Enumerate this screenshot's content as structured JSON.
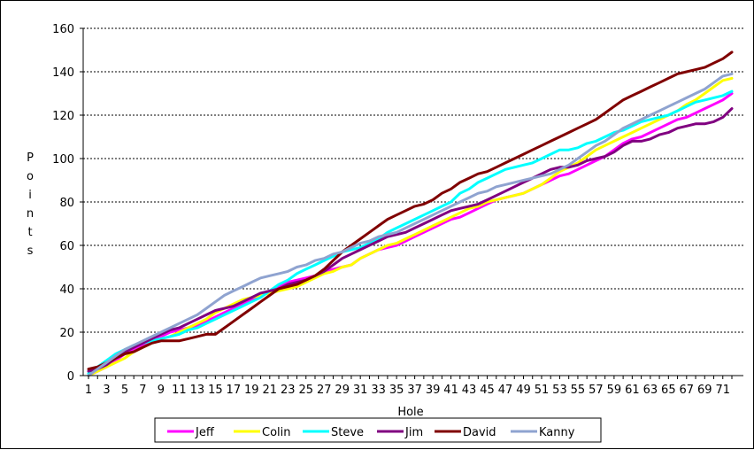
{
  "chart_data": {
    "type": "line",
    "title": "",
    "xlabel": "Hole",
    "ylabel": "Points",
    "x": [
      1,
      2,
      3,
      4,
      5,
      6,
      7,
      8,
      9,
      10,
      11,
      12,
      13,
      14,
      15,
      16,
      17,
      18,
      19,
      20,
      21,
      22,
      23,
      24,
      25,
      26,
      27,
      28,
      29,
      30,
      31,
      32,
      33,
      34,
      35,
      36,
      37,
      38,
      39,
      40,
      41,
      42,
      43,
      44,
      45,
      46,
      47,
      48,
      49,
      50,
      51,
      52,
      53,
      54,
      55,
      56,
      57,
      58,
      59,
      60,
      61,
      62,
      63,
      64,
      65,
      66,
      67,
      68,
      69,
      70,
      71,
      72
    ],
    "x_tick_labels": [
      "1",
      "3",
      "5",
      "7",
      "9",
      "11",
      "13",
      "15",
      "17",
      "19",
      "21",
      "23",
      "25",
      "27",
      "29",
      "31",
      "33",
      "35",
      "37",
      "39",
      "41",
      "43",
      "45",
      "47",
      "49",
      "51",
      "53",
      "55",
      "57",
      "59",
      "61",
      "63",
      "65",
      "67",
      "69",
      "71"
    ],
    "ylim": [
      0,
      160
    ],
    "y_ticks": [
      0,
      20,
      40,
      60,
      80,
      100,
      120,
      140,
      160
    ],
    "grid": "horizontal-dashed",
    "legend_position": "bottom",
    "series": [
      {
        "name": "Jeff",
        "color": "#FF00FF",
        "values": [
          0,
          2,
          4,
          7,
          10,
          12,
          14,
          16,
          18,
          20,
          21,
          22,
          23,
          25,
          27,
          29,
          31,
          33,
          35,
          37,
          39,
          41,
          43,
          44,
          45,
          46,
          48,
          49,
          50,
          51,
          54,
          56,
          58,
          59,
          60,
          62,
          64,
          66,
          68,
          70,
          72,
          73,
          75,
          77,
          79,
          81,
          82,
          83,
          84,
          86,
          88,
          90,
          92,
          93,
          95,
          97,
          99,
          101,
          104,
          107,
          109,
          110,
          112,
          114,
          116,
          118,
          119,
          121,
          123,
          125,
          127,
          130
        ]
      },
      {
        "name": "Colin",
        "color": "#FFFF00",
        "values": [
          0,
          2,
          4,
          6,
          8,
          11,
          13,
          15,
          17,
          18,
          20,
          22,
          24,
          26,
          29,
          31,
          33,
          35,
          36,
          37,
          38,
          39,
          40,
          41,
          43,
          45,
          47,
          48,
          50,
          51,
          54,
          56,
          58,
          60,
          61,
          63,
          65,
          67,
          69,
          71,
          73,
          75,
          77,
          78,
          80,
          81,
          82,
          83,
          84,
          86,
          88,
          91,
          94,
          96,
          98,
          101,
          104,
          106,
          108,
          110,
          112,
          114,
          116,
          118,
          120,
          122,
          125,
          127,
          130,
          133,
          136,
          137
        ]
      },
      {
        "name": "Steve",
        "color": "#00FFFF",
        "values": [
          1,
          4,
          7,
          10,
          12,
          14,
          15,
          16,
          17,
          18,
          19,
          21,
          22,
          24,
          26,
          28,
          30,
          32,
          34,
          36,
          39,
          42,
          44,
          47,
          49,
          51,
          53,
          55,
          57,
          58,
          59,
          61,
          63,
          66,
          68,
          70,
          72,
          74,
          76,
          78,
          80,
          84,
          86,
          89,
          91,
          93,
          95,
          96,
          97,
          98,
          100,
          102,
          104,
          104,
          105,
          107,
          108,
          110,
          112,
          113,
          115,
          117,
          118,
          119,
          120,
          122,
          124,
          126,
          127,
          128,
          129,
          131
        ]
      },
      {
        "name": "Jim",
        "color": "#800080",
        "values": [
          2,
          3,
          5,
          8,
          11,
          13,
          15,
          17,
          19,
          21,
          22,
          24,
          26,
          28,
          30,
          31,
          32,
          34,
          36,
          38,
          39,
          40,
          42,
          43,
          44,
          46,
          48,
          51,
          54,
          56,
          58,
          60,
          62,
          64,
          65,
          66,
          68,
          70,
          72,
          74,
          76,
          77,
          78,
          79,
          81,
          83,
          85,
          87,
          89,
          91,
          93,
          95,
          96,
          96,
          97,
          99,
          100,
          101,
          103,
          106,
          108,
          108,
          109,
          111,
          112,
          114,
          115,
          116,
          116,
          117,
          119,
          123
        ]
      },
      {
        "name": "David",
        "color": "#800000",
        "values": [
          3,
          4,
          6,
          8,
          10,
          11,
          13,
          15,
          16,
          16,
          16,
          17,
          18,
          19,
          19,
          22,
          25,
          28,
          31,
          34,
          37,
          40,
          41,
          42,
          44,
          46,
          49,
          53,
          57,
          60,
          63,
          66,
          69,
          72,
          74,
          76,
          78,
          79,
          81,
          84,
          86,
          89,
          91,
          93,
          94,
          96,
          98,
          100,
          102,
          104,
          106,
          108,
          110,
          112,
          114,
          116,
          118,
          121,
          124,
          127,
          129,
          131,
          133,
          135,
          137,
          139,
          140,
          141,
          142,
          144,
          146,
          149
        ]
      },
      {
        "name": "Kanny",
        "color": "#8FA3D0",
        "values": [
          0,
          3,
          6,
          9,
          12,
          14,
          16,
          18,
          20,
          22,
          24,
          26,
          28,
          31,
          34,
          37,
          39,
          41,
          43,
          45,
          46,
          47,
          48,
          50,
          51,
          53,
          54,
          56,
          57,
          59,
          61,
          62,
          64,
          65,
          66,
          68,
          70,
          72,
          74,
          76,
          78,
          80,
          82,
          84,
          85,
          87,
          88,
          89,
          90,
          91,
          92,
          93,
          95,
          97,
          100,
          103,
          106,
          108,
          111,
          114,
          116,
          118,
          120,
          122,
          124,
          126,
          128,
          130,
          132,
          135,
          138,
          139
        ]
      }
    ]
  }
}
